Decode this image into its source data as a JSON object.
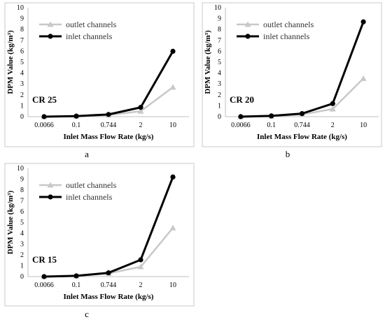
{
  "colors": {
    "outlet": "#c8c8c8",
    "inlet": "#000000",
    "frame": "#c8c8c8"
  },
  "chart_data": [
    {
      "type": "line",
      "caption": "a",
      "annotation": "CR 25",
      "categories": [
        "0.0066",
        "0.1",
        "0.744",
        "2",
        "10"
      ],
      "xlabel": "Inlet Mass Flow Rate (kg/s)",
      "ylabel": "DPM Value (kg/m³)",
      "ylim": [
        0,
        10
      ],
      "yticks": [
        "0",
        "1",
        "2",
        "3",
        "4",
        "5",
        "6",
        "7",
        "8",
        "9",
        "10"
      ],
      "legend_position": "top-left",
      "series": [
        {
          "name": "outlet channels",
          "marker": "triangle",
          "values": [
            0.0,
            0.03,
            0.15,
            0.5,
            2.7
          ]
        },
        {
          "name": "inlet channels",
          "marker": "circle",
          "values": [
            0.0,
            0.05,
            0.2,
            0.85,
            6.0
          ]
        }
      ]
    },
    {
      "type": "line",
      "caption": "b",
      "annotation": "CR 20",
      "categories": [
        "0.0066",
        "0.1",
        "0.744",
        "2",
        "10"
      ],
      "xlabel": "Inlet Mass Flow Rate (kg/s)",
      "ylabel": "DPM Value (kg/m³)",
      "ylim": [
        0,
        10
      ],
      "yticks": [
        "0",
        "1",
        "2",
        "3",
        "4",
        "5",
        "6",
        "7",
        "8",
        "9",
        "10"
      ],
      "legend_position": "top-left",
      "series": [
        {
          "name": "outlet channels",
          "marker": "triangle",
          "values": [
            0.0,
            0.03,
            0.2,
            0.7,
            3.5
          ]
        },
        {
          "name": "inlet channels",
          "marker": "circle",
          "values": [
            0.0,
            0.07,
            0.28,
            1.2,
            8.7
          ]
        }
      ]
    },
    {
      "type": "line",
      "caption": "c",
      "annotation": "CR 15",
      "categories": [
        "0.0066",
        "0.1",
        "0.744",
        "2",
        "10"
      ],
      "xlabel": "Inlet Mass Flow Rate (kg/s)",
      "ylabel": "DPM Value (kg/m³)",
      "ylim": [
        0,
        10
      ],
      "yticks": [
        "0",
        "1",
        "2",
        "3",
        "4",
        "5",
        "6",
        "7",
        "8",
        "9",
        "10"
      ],
      "legend_position": "top-left",
      "series": [
        {
          "name": "outlet channels",
          "marker": "triangle",
          "values": [
            0.0,
            0.05,
            0.3,
            0.9,
            4.5
          ]
        },
        {
          "name": "inlet channels",
          "marker": "circle",
          "values": [
            0.0,
            0.07,
            0.35,
            1.55,
            9.2
          ]
        }
      ]
    }
  ]
}
